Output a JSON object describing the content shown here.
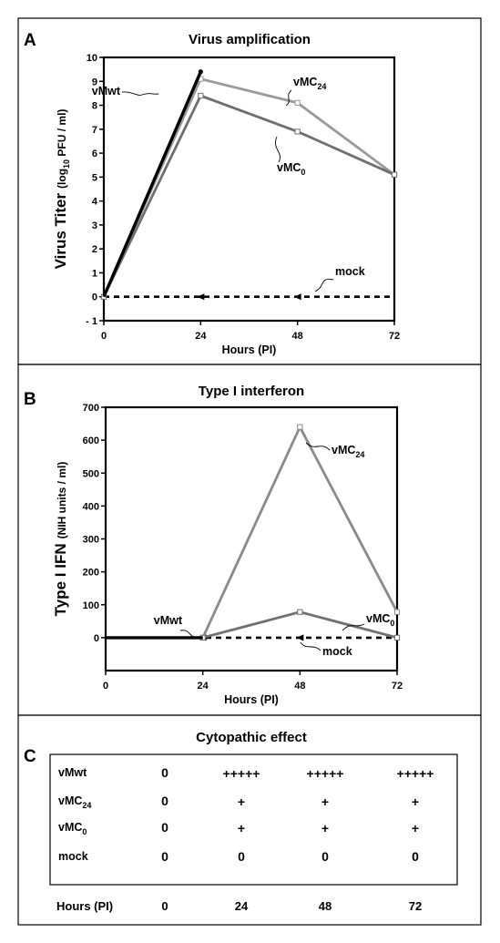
{
  "panels": {
    "A": "A",
    "B": "B",
    "C": "C"
  },
  "chart_data": [
    {
      "type": "line",
      "title": "Virus amplification",
      "xlabel": "Hours (PI)",
      "ylabel": "Virus Titer",
      "ylabel_units": {
        "prefix": "(log",
        "sub": "10",
        "suffix": " PFU / ml)"
      },
      "xlim": [
        0,
        72
      ],
      "ylim": [
        -1,
        10
      ],
      "x_ticks": [
        0,
        24,
        48,
        72
      ],
      "y_ticks": [
        -1,
        0,
        1,
        2,
        3,
        4,
        5,
        6,
        7,
        8,
        9,
        10
      ],
      "x_tick_labels": [
        "0",
        "24",
        "48",
        "72"
      ],
      "y_tick_labels": [
        "- 1",
        "0",
        "1",
        "2",
        "3",
        "4",
        "5",
        "6",
        "7",
        "8",
        "9",
        "10"
      ],
      "grid": false,
      "series": [
        {
          "name": "vMwt",
          "label": {
            "main": "vMwt",
            "sub": ""
          },
          "color": "#000000",
          "x": [
            0,
            24
          ],
          "y": [
            0,
            9.4
          ],
          "style": "solid-thick"
        },
        {
          "name": "vMC24",
          "label": {
            "main": "vMC",
            "sub": "24"
          },
          "color": "#999999",
          "x": [
            0,
            24,
            48,
            72
          ],
          "y": [
            0,
            9.1,
            8.1,
            5.1
          ],
          "style": "solid"
        },
        {
          "name": "vMC0",
          "label": {
            "main": "vMC",
            "sub": "0"
          },
          "color": "#6e6e6e",
          "x": [
            0,
            24,
            48,
            72
          ],
          "y": [
            0,
            8.4,
            6.9,
            5.1
          ],
          "style": "solid"
        },
        {
          "name": "mock",
          "label": {
            "main": "mock",
            "sub": ""
          },
          "color": "#000000",
          "x": [
            0,
            24,
            48,
            72
          ],
          "y": [
            0,
            0,
            0,
            0
          ],
          "style": "dashed"
        }
      ]
    },
    {
      "type": "line",
      "title": "Type I  interferon",
      "xlabel": "Hours (PI)",
      "ylabel": "Type I IFN",
      "ylabel_units": {
        "prefix": "(NIH units / ml)",
        "sub": "",
        "suffix": ""
      },
      "xlim": [
        0,
        72
      ],
      "ylim": [
        -100,
        700
      ],
      "x_ticks": [
        0,
        24,
        48,
        72
      ],
      "y_ticks": [
        0,
        100,
        200,
        300,
        400,
        500,
        600,
        700
      ],
      "x_tick_labels": [
        "0",
        "24",
        "48",
        "72"
      ],
      "y_tick_labels": [
        "0",
        "100",
        "200",
        "300",
        "400",
        "500",
        "600",
        "700"
      ],
      "grid": false,
      "series": [
        {
          "name": "vMwt",
          "label": {
            "main": "vMwt",
            "sub": ""
          },
          "color": "#000000",
          "x": [
            0,
            24
          ],
          "y": [
            0,
            0
          ],
          "style": "solid-thick"
        },
        {
          "name": "vMC24",
          "label": {
            "main": "vMC",
            "sub": "24"
          },
          "color": "#8a8a8a",
          "x": [
            24,
            48,
            72
          ],
          "y": [
            0,
            640,
            78
          ],
          "style": "solid"
        },
        {
          "name": "vMC0",
          "label": {
            "main": "vMC",
            "sub": "0"
          },
          "color": "#707070",
          "x": [
            24,
            48,
            72
          ],
          "y": [
            0,
            78,
            0
          ],
          "style": "solid"
        },
        {
          "name": "mock",
          "label": {
            "main": "mock",
            "sub": ""
          },
          "color": "#000000",
          "x": [
            0,
            24,
            48,
            72
          ],
          "y": [
            0,
            0,
            0,
            0
          ],
          "style": "dashed"
        }
      ]
    },
    {
      "type": "table",
      "title": "Cytopathic effect",
      "rows": [
        {
          "label": {
            "main": "vMwt",
            "sub": ""
          },
          "values": [
            "0",
            "+++++",
            "+++++",
            "+++++"
          ]
        },
        {
          "label": {
            "main": "vMC",
            "sub": "24"
          },
          "values": [
            "0",
            "+",
            "+",
            "+"
          ]
        },
        {
          "label": {
            "main": "vMC",
            "sub": "0"
          },
          "values": [
            "0",
            "+",
            "+",
            "+"
          ]
        },
        {
          "label": {
            "main": "mock",
            "sub": ""
          },
          "values": [
            "0",
            "0",
            "0",
            "0"
          ]
        }
      ],
      "footer": {
        "label": "Hours (PI)",
        "values": [
          "0",
          "24",
          "48",
          "72"
        ]
      }
    }
  ]
}
